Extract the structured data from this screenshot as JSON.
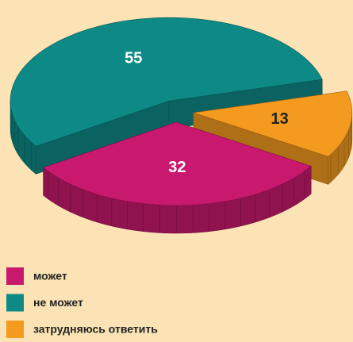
{
  "chart_data": {
    "type": "pie3d",
    "categories": [
      "может",
      "не может",
      "затрудняюсь ответить"
    ],
    "values": [
      32,
      55,
      13
    ],
    "colors": [
      "#c8196e",
      "#0e8a86",
      "#f39a1f"
    ],
    "label_colors": [
      "#ffffff",
      "#ffffff",
      "#222222"
    ]
  }
}
